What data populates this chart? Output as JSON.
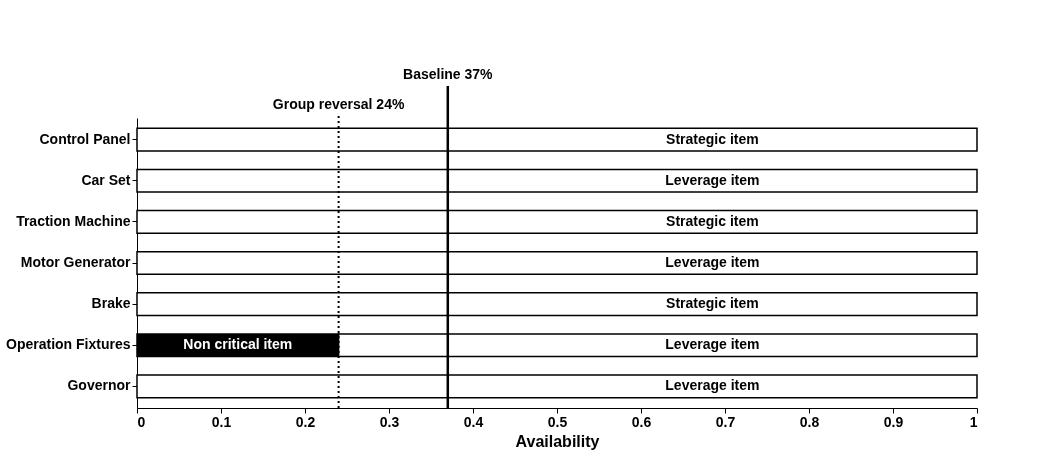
{
  "chart_data": {
    "type": "bar",
    "orientation": "horizontal",
    "stacked": true,
    "xlabel": "Availability",
    "categories": [
      "Control Panel",
      "Car Set",
      "Traction Machine",
      "Motor Generator",
      "Brake",
      "Operation Fixtures",
      "Governor"
    ],
    "series": [
      {
        "color": "#000000",
        "values": [
          null,
          null,
          null,
          null,
          null,
          0.24,
          null
        ],
        "value_labels": [
          null,
          null,
          null,
          null,
          null,
          "Non critical item",
          null
        ]
      },
      {
        "color": "#ffffff",
        "values": [
          1,
          1,
          1,
          1,
          1,
          0.76,
          1
        ],
        "value_labels": [
          "Strategic item",
          "Leverage item",
          "Strategic item",
          "Leverage item",
          "Strategic item",
          "Leverage item",
          "Leverage item"
        ]
      }
    ],
    "xlim": [
      0,
      1
    ],
    "xticks": [
      0,
      0.1,
      0.2,
      0.3,
      0.4,
      0.5,
      0.6,
      0.7,
      0.8,
      0.9,
      1
    ],
    "ref_lines": [
      {
        "axis": "x",
        "value": 0.24,
        "label": "Group reversal 24%",
        "line_style": "dotted",
        "color": "#000000"
      },
      {
        "axis": "x",
        "value": 0.37,
        "label": "Baseline 37%",
        "line_style": "solid",
        "color": "#000000"
      }
    ],
    "grid": false
  }
}
